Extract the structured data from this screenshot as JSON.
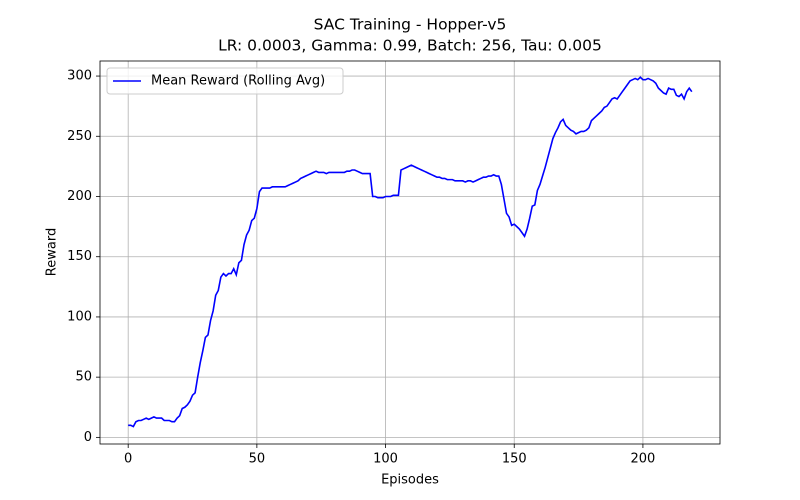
{
  "chart_data": {
    "type": "line",
    "title": "SAC Training - Hopper-v5",
    "subtitle": "LR: 0.0003, Gamma: 0.99, Batch: 256, Tau: 0.005",
    "x_label": "Episodes",
    "y_label": "Reward",
    "x": [
      0,
      1,
      2,
      3,
      4,
      5,
      6,
      7,
      8,
      9,
      10,
      11,
      12,
      13,
      14,
      15,
      16,
      17,
      18,
      19,
      20,
      21,
      22,
      23,
      24,
      25,
      26,
      27,
      28,
      29,
      30,
      31,
      32,
      33,
      34,
      35,
      36,
      37,
      38,
      39,
      40,
      41,
      42,
      43,
      44,
      45,
      46,
      47,
      48,
      49,
      50,
      51,
      52,
      53,
      54,
      55,
      56,
      57,
      58,
      59,
      60,
      61,
      62,
      63,
      64,
      65,
      66,
      67,
      68,
      69,
      70,
      71,
      72,
      73,
      74,
      75,
      76,
      77,
      78,
      79,
      80,
      81,
      82,
      83,
      84,
      85,
      86,
      87,
      88,
      89,
      90,
      91,
      92,
      93,
      94,
      95,
      96,
      97,
      98,
      99,
      100,
      101,
      102,
      103,
      104,
      105,
      106,
      107,
      108,
      109,
      110,
      111,
      112,
      113,
      114,
      115,
      116,
      117,
      118,
      119,
      120,
      121,
      122,
      123,
      124,
      125,
      126,
      127,
      128,
      129,
      130,
      131,
      132,
      133,
      134,
      135,
      136,
      137,
      138,
      139,
      140,
      141,
      142,
      143,
      144,
      145,
      146,
      147,
      148,
      149,
      150,
      151,
      152,
      153,
      154,
      155,
      156,
      157,
      158,
      159,
      160,
      161,
      162,
      163,
      164,
      165,
      166,
      167,
      168,
      169,
      170,
      171,
      172,
      173,
      174,
      175,
      176,
      177,
      178,
      179,
      180,
      181,
      182,
      183,
      184,
      185,
      186,
      187,
      188,
      189,
      190,
      191,
      192,
      193,
      194,
      195,
      196,
      197,
      198,
      199,
      200,
      201,
      202,
      203,
      204,
      205,
      206,
      207,
      208,
      209,
      210,
      211,
      212,
      213,
      214,
      215,
      216,
      217,
      218,
      219
    ],
    "series": [
      {
        "name": "Mean Reward (Rolling Avg)",
        "color": "#0000ff",
        "values": [
          10,
          10,
          9,
          13,
          14,
          14,
          15,
          16,
          15,
          16,
          17,
          16,
          16,
          16,
          14,
          14,
          14,
          13,
          13,
          16,
          18,
          24,
          25,
          27,
          30,
          35,
          37,
          50,
          62,
          72,
          83,
          85,
          97,
          105,
          118,
          122,
          133,
          136,
          134,
          136,
          136,
          140,
          135,
          145,
          147,
          160,
          168,
          172,
          180,
          182,
          190,
          204,
          207,
          207,
          207,
          207,
          208,
          208,
          208,
          208,
          208,
          208,
          209,
          210,
          211,
          212,
          213,
          215,
          216,
          217,
          218,
          219,
          220,
          221,
          220,
          220,
          220,
          219,
          220,
          220,
          220,
          220,
          220,
          220,
          220,
          221,
          221,
          222,
          222,
          221,
          220,
          219,
          219,
          219,
          219,
          200,
          200,
          199,
          199,
          199,
          200,
          200,
          200,
          201,
          201,
          201,
          222,
          223,
          224,
          225,
          226,
          225,
          224,
          223,
          222,
          221,
          220,
          219,
          218,
          217,
          216,
          216,
          215,
          215,
          214,
          214,
          214,
          213,
          213,
          213,
          213,
          212,
          213,
          213,
          212,
          213,
          214,
          215,
          216,
          216,
          217,
          217,
          218,
          217,
          217,
          210,
          198,
          186,
          183,
          176,
          177,
          175,
          173,
          170,
          167,
          173,
          182,
          192,
          193,
          205,
          210,
          217,
          224,
          232,
          240,
          248,
          253,
          257,
          262,
          264,
          259,
          257,
          255,
          254,
          252,
          253,
          254,
          254,
          255,
          257,
          263,
          265,
          267,
          269,
          271,
          274,
          275,
          278,
          281,
          282,
          281,
          284,
          287,
          290,
          293,
          296,
          297,
          298,
          297,
          299,
          297,
          297,
          298,
          297,
          296,
          294,
          290,
          288,
          286,
          285,
          290,
          289,
          289,
          284,
          283,
          285,
          281,
          287,
          290,
          287
        ]
      }
    ],
    "xlim": [
      -10.95,
      229.95
    ],
    "ylim": [
      -5.5,
      312.5
    ],
    "xticks": [
      0,
      50,
      100,
      150,
      200
    ],
    "yticks": [
      0,
      50,
      100,
      150,
      200,
      250,
      300
    ],
    "grid": true,
    "legend": "upper left"
  }
}
